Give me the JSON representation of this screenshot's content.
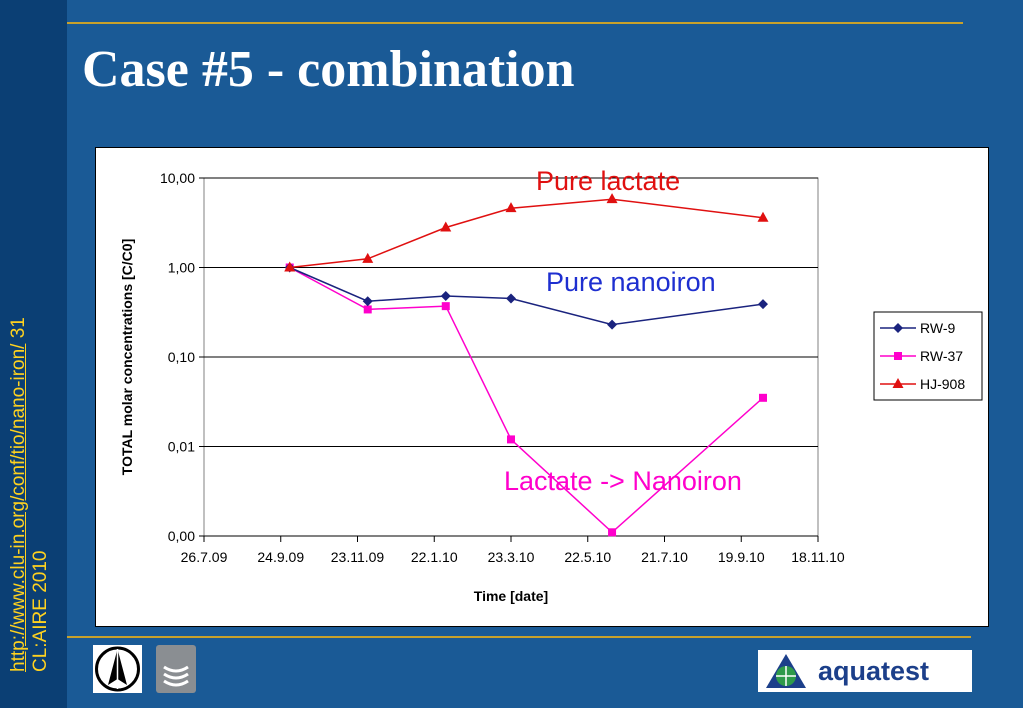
{
  "slide": {
    "title": "Case #5 - combination",
    "side_url": "http://www.clu-in.org/conf/tio/nano-iron/",
    "side_page": "31",
    "side_footer": "CL:AIRE 2010",
    "logo_text": "aquatest"
  },
  "colors": {
    "background": "#1a5a96",
    "rule": "#c8a12b",
    "side_text": "#ffd21f",
    "rw9": "#1a237e",
    "rw37": "#ff00cc",
    "hj908": "#e01010"
  },
  "chart_data": {
    "type": "line",
    "title": "",
    "xlabel": "Time [date]",
    "ylabel": "TOTAL molar concentrations [C/C0]",
    "y_scale": "log",
    "ylim": [
      0.001,
      10
    ],
    "xlim": [
      "2009-07-26",
      "2010-11-18"
    ],
    "x_tick_labels": [
      "26.7.09",
      "24.9.09",
      "23.11.09",
      "22.1.10",
      "23.3.10",
      "22.5.10",
      "21.7.10",
      "19.9.10",
      "18.11.10"
    ],
    "x_tick_dates": [
      "2009-07-26",
      "2009-09-24",
      "2009-11-23",
      "2010-01-22",
      "2010-03-23",
      "2010-05-22",
      "2010-07-21",
      "2010-09-19",
      "2010-11-18"
    ],
    "y_tick_labels": [
      "10,00",
      "1,00",
      "0,10",
      "0,01",
      "0,00"
    ],
    "y_tick_values": [
      10,
      1,
      0.1,
      0.01,
      0.001
    ],
    "grid": "horizontal",
    "legend_position": "right",
    "series": [
      {
        "name": "RW-9",
        "marker": "diamond",
        "x": [
          "2009-10-01",
          "2009-12-01",
          "2010-01-31",
          "2010-03-23",
          "2010-06-10",
          "2010-10-06"
        ],
        "y": [
          1.0,
          0.42,
          0.48,
          0.45,
          0.23,
          0.39
        ]
      },
      {
        "name": "RW-37",
        "marker": "square",
        "x": [
          "2009-10-01",
          "2009-12-01",
          "2010-01-31",
          "2010-03-23",
          "2010-06-10",
          "2010-10-06"
        ],
        "y": [
          1.0,
          0.34,
          0.37,
          0.012,
          0.0011,
          0.035
        ]
      },
      {
        "name": "HJ-908",
        "marker": "triangle",
        "x": [
          "2009-10-01",
          "2009-12-01",
          "2010-01-31",
          "2010-03-23",
          "2010-06-10",
          "2010-10-06"
        ],
        "y": [
          1.0,
          1.25,
          2.8,
          4.6,
          5.8,
          3.6
        ]
      }
    ],
    "annotations": [
      {
        "text": "Pure lactate",
        "color": "#e01010"
      },
      {
        "text": "Pure nanoiron",
        "color": "#1e2fd0"
      },
      {
        "text": "Lactate -> Nanoiron",
        "color": "#ff00cc"
      }
    ]
  }
}
